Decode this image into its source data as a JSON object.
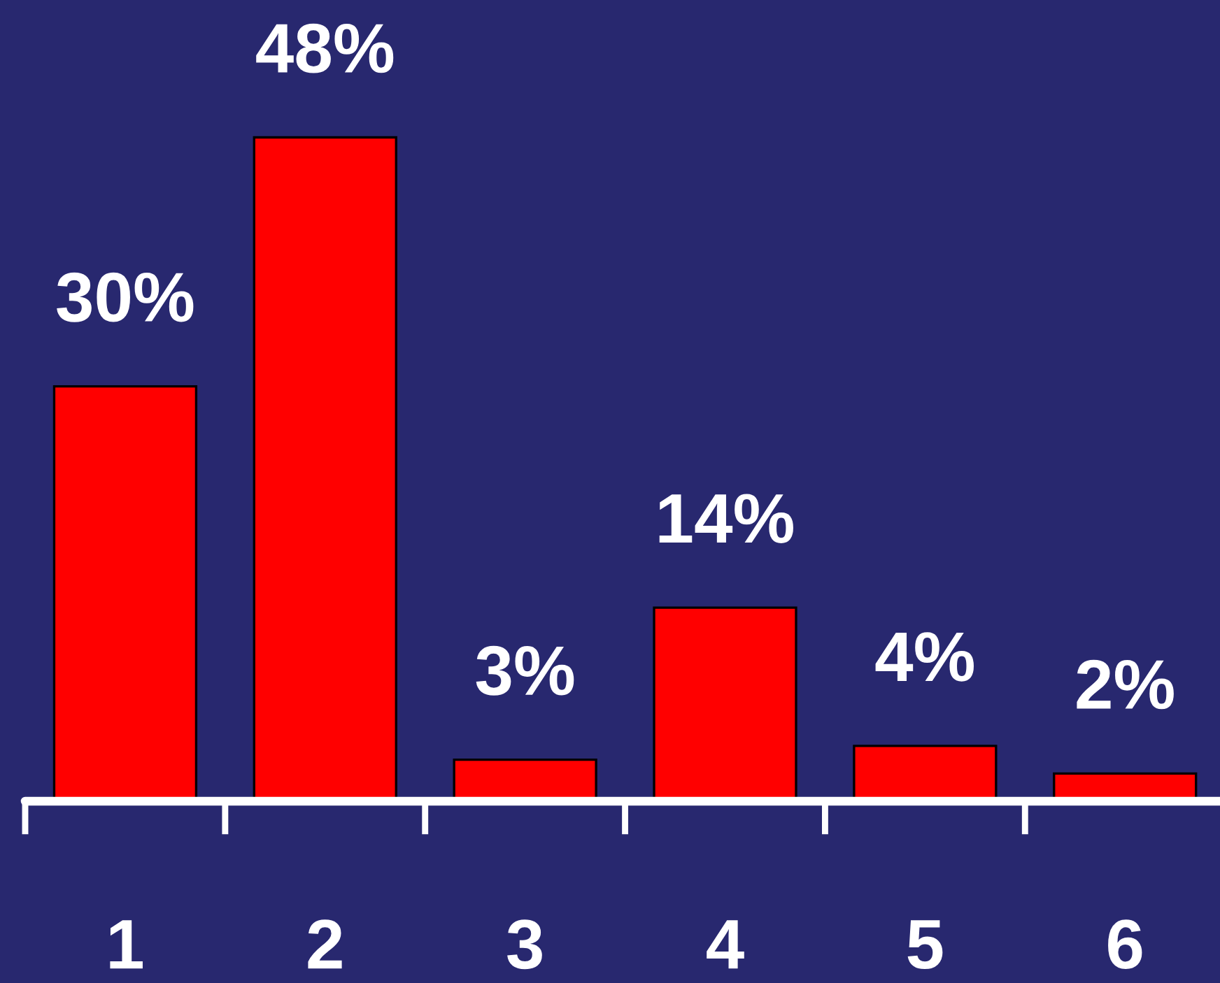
{
  "chart_data": {
    "type": "bar",
    "categories": [
      "1",
      "2",
      "3",
      "4",
      "5",
      "6"
    ],
    "values": [
      30,
      48,
      3,
      14,
      4,
      2
    ],
    "value_labels": [
      "30%",
      "48%",
      "3%",
      "14%",
      "4%",
      "2%"
    ],
    "color": "#ff0000"
  }
}
